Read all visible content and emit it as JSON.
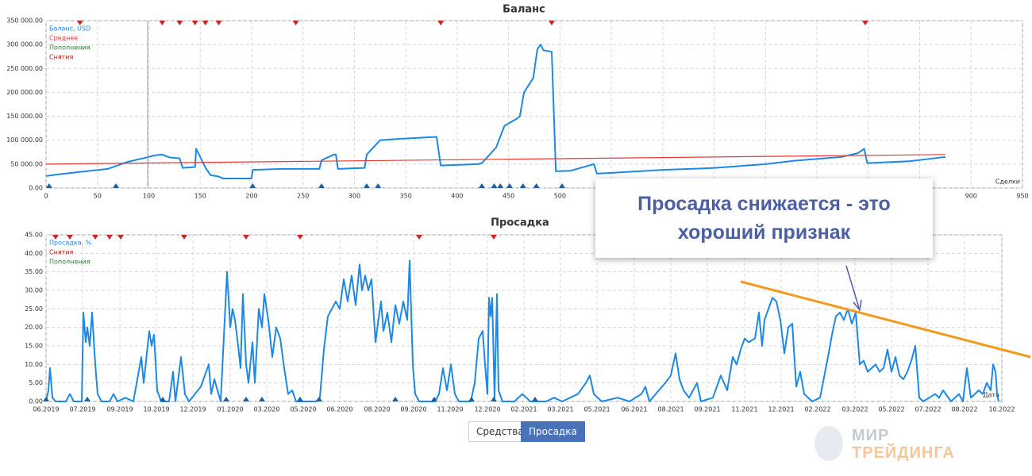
{
  "chart_data": [
    {
      "type": "line",
      "title": "Баланс",
      "xlabel": "Сделки",
      "xlim": [
        0,
        950
      ],
      "xticks": [
        0,
        50,
        100,
        150,
        200,
        250,
        300,
        350,
        400,
        450,
        500,
        550,
        600,
        650,
        700,
        750,
        800,
        850,
        900,
        950
      ],
      "ylim": [
        0,
        350000
      ],
      "yticks": [
        {
          "value": 0,
          "label": "0.00"
        },
        {
          "value": 50000,
          "label": "50 000.00"
        },
        {
          "value": 100000,
          "label": "100 000.00"
        },
        {
          "value": 150000,
          "label": "150 000.00"
        },
        {
          "value": 200000,
          "label": "200 000.00"
        },
        {
          "value": 250000,
          "label": "250 000.00"
        },
        {
          "value": 300000,
          "label": "300 000.00"
        },
        {
          "value": 350000,
          "label": "350 000.00"
        }
      ],
      "grid": true,
      "legend": "top-left",
      "series": [
        {
          "name": "Баланс, USD",
          "color": "#1e88e5",
          "kind": "line",
          "x": [
            0,
            10,
            30,
            60,
            80,
            100,
            105,
            113,
            120,
            130,
            133,
            145,
            146,
            150,
            155,
            160,
            168,
            172,
            200,
            201,
            230,
            266,
            268,
            280,
            282,
            284,
            310,
            312,
            325,
            345,
            380,
            384,
            420,
            424,
            438,
            446,
            458,
            461,
            465,
            474,
            478,
            481,
            484,
            492,
            496,
            510,
            533,
            536,
            600,
            651,
            700,
            728,
            774,
            790,
            796,
            799,
            840,
            875
          ],
          "values": [
            25000,
            28000,
            33000,
            40000,
            55000,
            65000,
            68000,
            70000,
            64000,
            62000,
            42000,
            44000,
            82000,
            65000,
            43000,
            27000,
            24000,
            20000,
            20000,
            38000,
            40000,
            40000,
            58000,
            70000,
            70000,
            40000,
            42000,
            70000,
            100000,
            103000,
            107000,
            47000,
            50000,
            52000,
            85000,
            130000,
            145000,
            150000,
            200000,
            230000,
            290000,
            300000,
            288000,
            285000,
            35000,
            36000,
            50000,
            30000,
            38000,
            42000,
            50000,
            57000,
            65000,
            73000,
            82000,
            52000,
            56000,
            65000
          ]
        },
        {
          "name": "Среднее",
          "color": "#e53935",
          "kind": "line",
          "x": [
            0,
            875
          ],
          "values": [
            50000,
            70000
          ]
        },
        {
          "name": "Пополнения",
          "color": "#2e7d32",
          "marker_color": "#1f5f9a",
          "kind": "markers",
          "position": "bottom",
          "x": [
            3,
            68,
            201,
            268,
            312,
            323,
            424,
            436,
            442,
            451,
            464,
            477,
            502
          ]
        },
        {
          "name": "Снятия",
          "color": "#b71c1c",
          "marker_color": "#c62828",
          "kind": "markers",
          "position": "top",
          "x": [
            33,
            113,
            130,
            145,
            155,
            168,
            243,
            384,
            492,
            797
          ]
        }
      ]
    },
    {
      "type": "line",
      "title": "Просадка",
      "xlabel": "Дата",
      "xlim": [
        0,
        1204
      ],
      "xticks": [
        {
          "value": 0,
          "label": "06.2019"
        },
        {
          "value": 46,
          "label": "07.2019"
        },
        {
          "value": 93,
          "label": "09.2019"
        },
        {
          "value": 139,
          "label": "10.2019"
        },
        {
          "value": 185,
          "label": "12.2019"
        },
        {
          "value": 232,
          "label": "01.2020"
        },
        {
          "value": 278,
          "label": "03.2020"
        },
        {
          "value": 324,
          "label": "05.2020"
        },
        {
          "value": 370,
          "label": "06.2020"
        },
        {
          "value": 417,
          "label": "08.2020"
        },
        {
          "value": 463,
          "label": "09.2020"
        },
        {
          "value": 509,
          "label": "11.2020"
        },
        {
          "value": 556,
          "label": "12.2020"
        },
        {
          "value": 602,
          "label": "02.2021"
        },
        {
          "value": 648,
          "label": "03.2021"
        },
        {
          "value": 694,
          "label": "05.2021"
        },
        {
          "value": 741,
          "label": "06.2021"
        },
        {
          "value": 787,
          "label": "08.2021"
        },
        {
          "value": 833,
          "label": "09.2021"
        },
        {
          "value": 880,
          "label": "11.2021"
        },
        {
          "value": 926,
          "label": "12.2021"
        },
        {
          "value": 972,
          "label": "02.2022"
        },
        {
          "value": 1019,
          "label": "03.2022"
        },
        {
          "value": 1065,
          "label": "05.2022"
        },
        {
          "value": 1111,
          "label": "07.2022"
        },
        {
          "value": 1157,
          "label": "08.2022"
        },
        {
          "value": 1204,
          "label": "10.2022"
        }
      ],
      "ylim": [
        0,
        45
      ],
      "yticks": [
        {
          "value": 0,
          "label": "0.00"
        },
        {
          "value": 5,
          "label": "5.00"
        },
        {
          "value": 10,
          "label": "10.00"
        },
        {
          "value": 15,
          "label": "15.00"
        },
        {
          "value": 20,
          "label": "20.00"
        },
        {
          "value": 25,
          "label": "25.00"
        },
        {
          "value": 30,
          "label": "30.00"
        },
        {
          "value": 35,
          "label": "35.00"
        },
        {
          "value": 40,
          "label": "40.00"
        },
        {
          "value": 45,
          "label": "45.00"
        }
      ],
      "grid": true,
      "legend": "top-left",
      "series": [
        {
          "name": "Просадка, %",
          "color": "#1e88e5",
          "kind": "line",
          "x": [
            0,
            3,
            5,
            8,
            12,
            25,
            30,
            35,
            45,
            47,
            50,
            52,
            55,
            58,
            62,
            65,
            70,
            80,
            85,
            90,
            100,
            110,
            120,
            123,
            130,
            133,
            136,
            140,
            145,
            155,
            160,
            163,
            170,
            175,
            180,
            195,
            205,
            208,
            212,
            220,
            228,
            232,
            235,
            238,
            242,
            245,
            248,
            252,
            255,
            260,
            263,
            268,
            272,
            275,
            280,
            285,
            290,
            295,
            300,
            305,
            310,
            315,
            340,
            345,
            350,
            355,
            360,
            365,
            370,
            375,
            380,
            385,
            390,
            395,
            398,
            402,
            406,
            410,
            415,
            418,
            422,
            425,
            430,
            435,
            440,
            445,
            450,
            455,
            458,
            462,
            465,
            470,
            490,
            495,
            500,
            505,
            510,
            515,
            520,
            535,
            540,
            545,
            550,
            553,
            556,
            558,
            560,
            562,
            565,
            568,
            570,
            575,
            590,
            600,
            610,
            630,
            640,
            650,
            670,
            680,
            685,
            690,
            700,
            720,
            735,
            750,
            755,
            760,
            780,
            787,
            793,
            798,
            803,
            810,
            815,
            820,
            825,
            840,
            850,
            858,
            865,
            870,
            875,
            880,
            885,
            893,
            898,
            902,
            905,
            910,
            915,
            920,
            925,
            930,
            935,
            940,
            945,
            950,
            955,
            960,
            965,
            975,
            985,
            990,
            995,
            1000,
            1005,
            1010,
            1015,
            1020,
            1025,
            1030,
            1035,
            1040,
            1045,
            1050,
            1055,
            1060,
            1065,
            1070,
            1075,
            1080,
            1085,
            1090,
            1095,
            1100,
            1105,
            1120,
            1125,
            1130,
            1140,
            1150,
            1155,
            1160,
            1165,
            1170,
            1175,
            1180,
            1185,
            1190,
            1193,
            1196,
            1198,
            1200
          ],
          "values": [
            0,
            3,
            9,
            1,
            0,
            0,
            2,
            0,
            0,
            24,
            16,
            20,
            15,
            24,
            10,
            2,
            0,
            0,
            2,
            0,
            1,
            0,
            12,
            5,
            19,
            15,
            18,
            3,
            0,
            0,
            8,
            0,
            12,
            2,
            0,
            4,
            10,
            2,
            6,
            0,
            35,
            20,
            25,
            22,
            15,
            9,
            29,
            10,
            5,
            16,
            5,
            25,
            20,
            29,
            22,
            12,
            20,
            17,
            9,
            2,
            3,
            0,
            0,
            1,
            14,
            23,
            25,
            27,
            25,
            33,
            27,
            34,
            26,
            37,
            30,
            34,
            30,
            33,
            16,
            21,
            27,
            19,
            24,
            16,
            26,
            21,
            27,
            22,
            38,
            10,
            2,
            0,
            0,
            2,
            9,
            3,
            10,
            2,
            0,
            0,
            5,
            17,
            19,
            10,
            2,
            28,
            23,
            28,
            1,
            29,
            3,
            0,
            0,
            2,
            0,
            0,
            1,
            0,
            2,
            5,
            7,
            2,
            0,
            1,
            0,
            2,
            4,
            0,
            5,
            7,
            13,
            6,
            3,
            1,
            3,
            5,
            0,
            1,
            7,
            3,
            12,
            10,
            14,
            17,
            16,
            17,
            24,
            15,
            22,
            25,
            28,
            27,
            22,
            13,
            20,
            21,
            4,
            8,
            2,
            1,
            0,
            1,
            12,
            18,
            23,
            24,
            22,
            25,
            21,
            24,
            10,
            11,
            8,
            9,
            10,
            8,
            9,
            14,
            8,
            12,
            7,
            6,
            8,
            11,
            15,
            1,
            0,
            2,
            1,
            3,
            0,
            2,
            0,
            9,
            1,
            2,
            3,
            2,
            5,
            3,
            10,
            8,
            2,
            0
          ]
        },
        {
          "name": "Снятия",
          "color": "#b71c1c",
          "marker_color": "#c62828",
          "kind": "markers",
          "position": "top",
          "x": [
            12,
            30,
            62,
            80,
            94,
            174,
            252,
            320,
            470,
            564
          ]
        },
        {
          "name": "Пополнения",
          "color": "#2e7d32",
          "marker_color": "#1f5f9a",
          "kind": "markers",
          "position": "bottom",
          "x": [
            0,
            52,
            147,
            227,
            252,
            272,
            320,
            344,
            440,
            489,
            536,
            564,
            616
          ]
        }
      ]
    }
  ],
  "buttons": [
    "Средства",
    "Просадка"
  ],
  "active_button": 1,
  "annotation": {
    "line1": "Просадка снижается - это",
    "line2": "хороший признак"
  },
  "logo": {
    "line1": "МИР",
    "line2": "ТРЕЙДИНГА"
  }
}
